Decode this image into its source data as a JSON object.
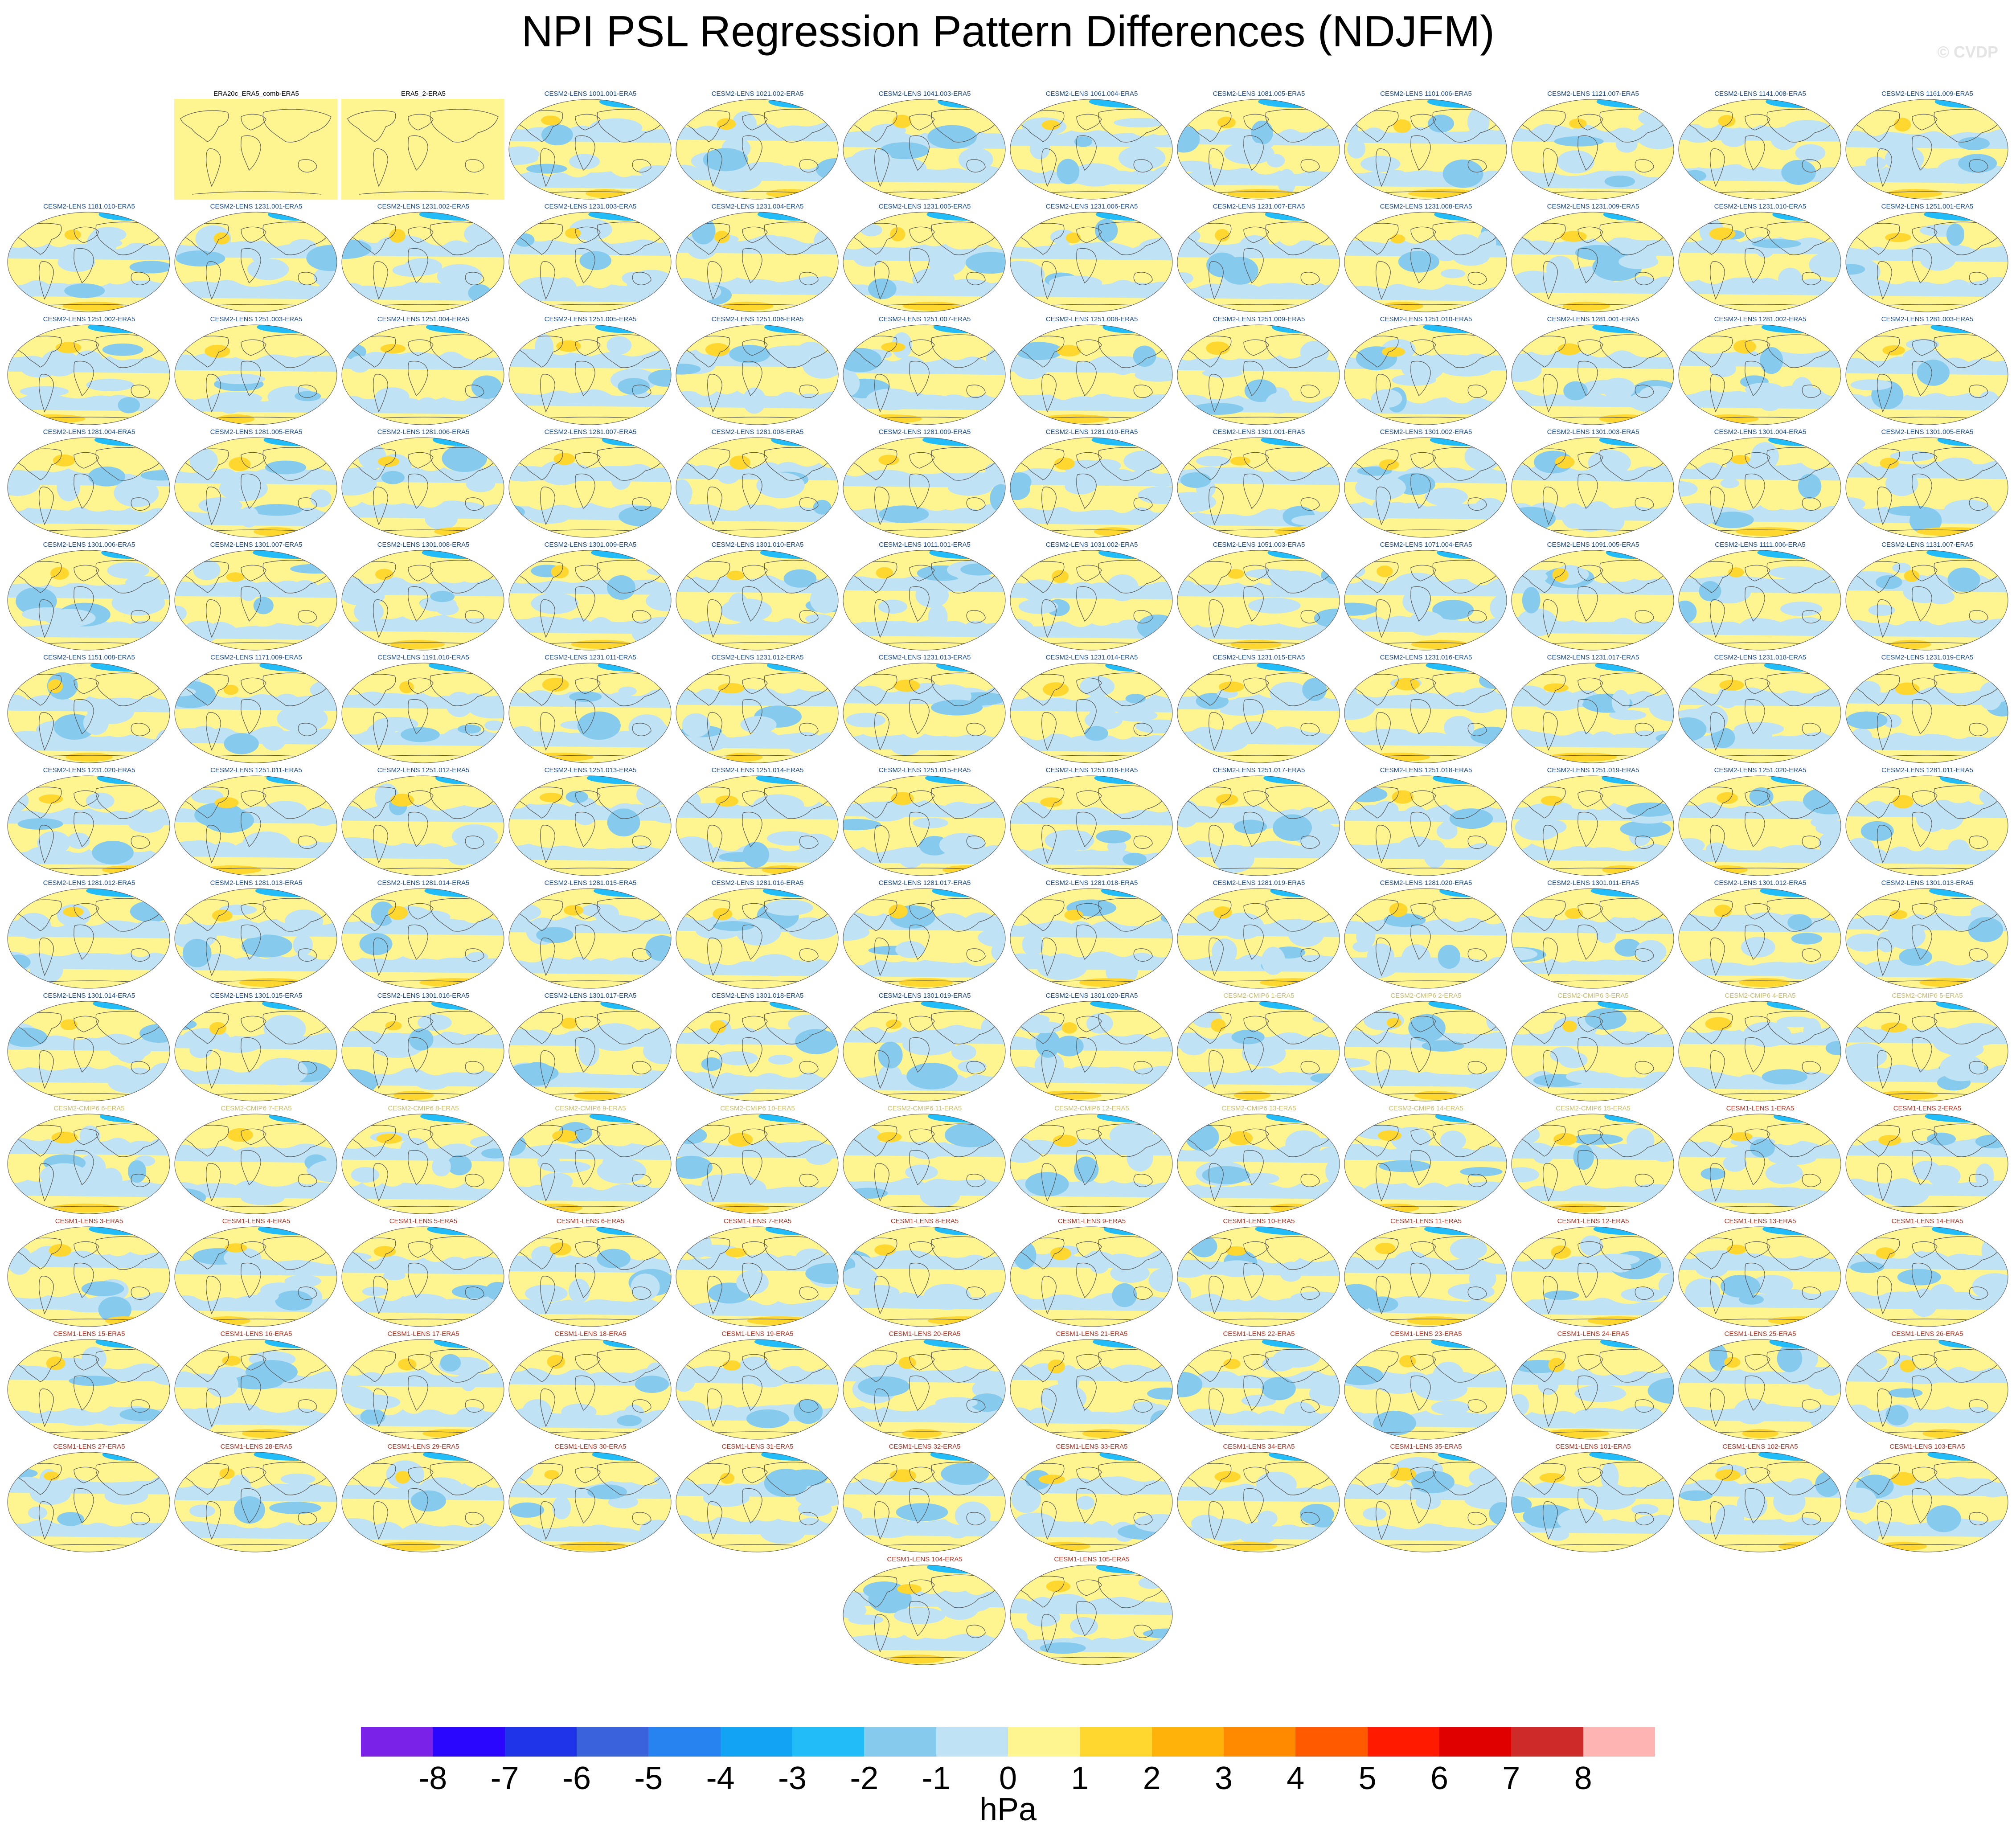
{
  "title": "NPI PSL Regression Pattern Differences (NDJFM)",
  "watermark": "© CVDP",
  "colorbar": {
    "units": "hPa",
    "labels": [
      "-8",
      "-7",
      "-6",
      "-5",
      "-4",
      "-3",
      "-2",
      "-1",
      "0",
      "1",
      "2",
      "3",
      "4",
      "5",
      "6",
      "7",
      "8"
    ],
    "colors": [
      "#7b22e8",
      "#2a06ff",
      "#1f34e8",
      "#3a62dc",
      "#2683f0",
      "#12a3f5",
      "#22bcf8",
      "#86cbee",
      "#bfe3f4",
      "#fff590",
      "#ffd72e",
      "#ffb20a",
      "#ff8a00",
      "#ff5a00",
      "#ff1a00",
      "#e10000",
      "#cf2a2a",
      "#ffb4b4"
    ]
  },
  "colors": {
    "obs_title": "#000000",
    "lens2_title": "#1a4a8a",
    "cmip6_title": "#c8bc6a",
    "lens1_title": "#b03020",
    "land_outline": "#555555"
  },
  "map_style": "robinson-like global projection, negative values blue, positive values yellow/orange",
  "panels": [
    {
      "label": "ERA20c_ERA5_comb-ERA5",
      "group": "obs",
      "style": "flat"
    },
    {
      "label": "ERA5_2-ERA5",
      "group": "obs",
      "style": "flat"
    },
    {
      "label": "CESM2-LENS 1001.001-ERA5",
      "group": "lens2"
    },
    {
      "label": "CESM2-LENS 1021.002-ERA5",
      "group": "lens2"
    },
    {
      "label": "CESM2-LENS 1041.003-ERA5",
      "group": "lens2"
    },
    {
      "label": "CESM2-LENS 1061.004-ERA5",
      "group": "lens2"
    },
    {
      "label": "CESM2-LENS 1081.005-ERA5",
      "group": "lens2"
    },
    {
      "label": "CESM2-LENS 1101.006-ERA5",
      "group": "lens2"
    },
    {
      "label": "CESM2-LENS 1121.007-ERA5",
      "group": "lens2"
    },
    {
      "label": "CESM2-LENS 1141.008-ERA5",
      "group": "lens2"
    },
    {
      "label": "CESM2-LENS 1161.009-ERA5",
      "group": "lens2"
    },
    {
      "label": "CESM2-LENS 1181.010-ERA5",
      "group": "lens2"
    },
    {
      "label": "CESM2-LENS 1231.001-ERA5",
      "group": "lens2"
    },
    {
      "label": "CESM2-LENS 1231.002-ERA5",
      "group": "lens2"
    },
    {
      "label": "CESM2-LENS 1231.003-ERA5",
      "group": "lens2"
    },
    {
      "label": "CESM2-LENS 1231.004-ERA5",
      "group": "lens2"
    },
    {
      "label": "CESM2-LENS 1231.005-ERA5",
      "group": "lens2"
    },
    {
      "label": "CESM2-LENS 1231.006-ERA5",
      "group": "lens2"
    },
    {
      "label": "CESM2-LENS 1231.007-ERA5",
      "group": "lens2"
    },
    {
      "label": "CESM2-LENS 1231.008-ERA5",
      "group": "lens2"
    },
    {
      "label": "CESM2-LENS 1231.009-ERA5",
      "group": "lens2"
    },
    {
      "label": "CESM2-LENS 1231.010-ERA5",
      "group": "lens2"
    },
    {
      "label": "CESM2-LENS 1251.001-ERA5",
      "group": "lens2"
    },
    {
      "label": "CESM2-LENS 1251.002-ERA5",
      "group": "lens2"
    },
    {
      "label": "CESM2-LENS 1251.003-ERA5",
      "group": "lens2"
    },
    {
      "label": "CESM2-LENS 1251.004-ERA5",
      "group": "lens2"
    },
    {
      "label": "CESM2-LENS 1251.005-ERA5",
      "group": "lens2"
    },
    {
      "label": "CESM2-LENS 1251.006-ERA5",
      "group": "lens2"
    },
    {
      "label": "CESM2-LENS 1251.007-ERA5",
      "group": "lens2"
    },
    {
      "label": "CESM2-LENS 1251.008-ERA5",
      "group": "lens2"
    },
    {
      "label": "CESM2-LENS 1251.009-ERA5",
      "group": "lens2"
    },
    {
      "label": "CESM2-LENS 1251.010-ERA5",
      "group": "lens2"
    },
    {
      "label": "CESM2-LENS 1281.001-ERA5",
      "group": "lens2"
    },
    {
      "label": "CESM2-LENS 1281.002-ERA5",
      "group": "lens2"
    },
    {
      "label": "CESM2-LENS 1281.003-ERA5",
      "group": "lens2"
    },
    {
      "label": "CESM2-LENS 1281.004-ERA5",
      "group": "lens2"
    },
    {
      "label": "CESM2-LENS 1281.005-ERA5",
      "group": "lens2"
    },
    {
      "label": "CESM2-LENS 1281.006-ERA5",
      "group": "lens2"
    },
    {
      "label": "CESM2-LENS 1281.007-ERA5",
      "group": "lens2"
    },
    {
      "label": "CESM2-LENS 1281.008-ERA5",
      "group": "lens2"
    },
    {
      "label": "CESM2-LENS 1281.009-ERA5",
      "group": "lens2"
    },
    {
      "label": "CESM2-LENS 1281.010-ERA5",
      "group": "lens2"
    },
    {
      "label": "CESM2-LENS 1301.001-ERA5",
      "group": "lens2"
    },
    {
      "label": "CESM2-LENS 1301.002-ERA5",
      "group": "lens2"
    },
    {
      "label": "CESM2-LENS 1301.003-ERA5",
      "group": "lens2"
    },
    {
      "label": "CESM2-LENS 1301.004-ERA5",
      "group": "lens2"
    },
    {
      "label": "CESM2-LENS 1301.005-ERA5",
      "group": "lens2"
    },
    {
      "label": "CESM2-LENS 1301.006-ERA5",
      "group": "lens2"
    },
    {
      "label": "CESM2-LENS 1301.007-ERA5",
      "group": "lens2"
    },
    {
      "label": "CESM2-LENS 1301.008-ERA5",
      "group": "lens2"
    },
    {
      "label": "CESM2-LENS 1301.009-ERA5",
      "group": "lens2"
    },
    {
      "label": "CESM2-LENS 1301.010-ERA5",
      "group": "lens2"
    },
    {
      "label": "CESM2-LENS 1011.001-ERA5",
      "group": "lens2"
    },
    {
      "label": "CESM2-LENS 1031.002-ERA5",
      "group": "lens2"
    },
    {
      "label": "CESM2-LENS 1051.003-ERA5",
      "group": "lens2"
    },
    {
      "label": "CESM2-LENS 1071.004-ERA5",
      "group": "lens2"
    },
    {
      "label": "CESM2-LENS 1091.005-ERA5",
      "group": "lens2"
    },
    {
      "label": "CESM2-LENS 1111.006-ERA5",
      "group": "lens2"
    },
    {
      "label": "CESM2-LENS 1131.007-ERA5",
      "group": "lens2"
    },
    {
      "label": "CESM2-LENS 1151.008-ERA5",
      "group": "lens2"
    },
    {
      "label": "CESM2-LENS 1171.009-ERA5",
      "group": "lens2"
    },
    {
      "label": "CESM2-LENS 1191.010-ERA5",
      "group": "lens2"
    },
    {
      "label": "CESM2-LENS 1231.011-ERA5",
      "group": "lens2"
    },
    {
      "label": "CESM2-LENS 1231.012-ERA5",
      "group": "lens2"
    },
    {
      "label": "CESM2-LENS 1231.013-ERA5",
      "group": "lens2"
    },
    {
      "label": "CESM2-LENS 1231.014-ERA5",
      "group": "lens2"
    },
    {
      "label": "CESM2-LENS 1231.015-ERA5",
      "group": "lens2"
    },
    {
      "label": "CESM2-LENS 1231.016-ERA5",
      "group": "lens2"
    },
    {
      "label": "CESM2-LENS 1231.017-ERA5",
      "group": "lens2"
    },
    {
      "label": "CESM2-LENS 1231.018-ERA5",
      "group": "lens2"
    },
    {
      "label": "CESM2-LENS 1231.019-ERA5",
      "group": "lens2"
    },
    {
      "label": "CESM2-LENS 1231.020-ERA5",
      "group": "lens2"
    },
    {
      "label": "CESM2-LENS 1251.011-ERA5",
      "group": "lens2"
    },
    {
      "label": "CESM2-LENS 1251.012-ERA5",
      "group": "lens2"
    },
    {
      "label": "CESM2-LENS 1251.013-ERA5",
      "group": "lens2"
    },
    {
      "label": "CESM2-LENS 1251.014-ERA5",
      "group": "lens2"
    },
    {
      "label": "CESM2-LENS 1251.015-ERA5",
      "group": "lens2"
    },
    {
      "label": "CESM2-LENS 1251.016-ERA5",
      "group": "lens2"
    },
    {
      "label": "CESM2-LENS 1251.017-ERA5",
      "group": "lens2"
    },
    {
      "label": "CESM2-LENS 1251.018-ERA5",
      "group": "lens2"
    },
    {
      "label": "CESM2-LENS 1251.019-ERA5",
      "group": "lens2"
    },
    {
      "label": "CESM2-LENS 1251.020-ERA5",
      "group": "lens2"
    },
    {
      "label": "CESM2-LENS 1281.011-ERA5",
      "group": "lens2"
    },
    {
      "label": "CESM2-LENS 1281.012-ERA5",
      "group": "lens2"
    },
    {
      "label": "CESM2-LENS 1281.013-ERA5",
      "group": "lens2"
    },
    {
      "label": "CESM2-LENS 1281.014-ERA5",
      "group": "lens2"
    },
    {
      "label": "CESM2-LENS 1281.015-ERA5",
      "group": "lens2"
    },
    {
      "label": "CESM2-LENS 1281.016-ERA5",
      "group": "lens2"
    },
    {
      "label": "CESM2-LENS 1281.017-ERA5",
      "group": "lens2"
    },
    {
      "label": "CESM2-LENS 1281.018-ERA5",
      "group": "lens2"
    },
    {
      "label": "CESM2-LENS 1281.019-ERA5",
      "group": "lens2"
    },
    {
      "label": "CESM2-LENS 1281.020-ERA5",
      "group": "lens2"
    },
    {
      "label": "CESM2-LENS 1301.011-ERA5",
      "group": "lens2"
    },
    {
      "label": "CESM2-LENS 1301.012-ERA5",
      "group": "lens2"
    },
    {
      "label": "CESM2-LENS 1301.013-ERA5",
      "group": "lens2"
    },
    {
      "label": "CESM2-LENS 1301.014-ERA5",
      "group": "lens2"
    },
    {
      "label": "CESM2-LENS 1301.015-ERA5",
      "group": "lens2"
    },
    {
      "label": "CESM2-LENS 1301.016-ERA5",
      "group": "lens2"
    },
    {
      "label": "CESM2-LENS 1301.017-ERA5",
      "group": "lens2"
    },
    {
      "label": "CESM2-LENS 1301.018-ERA5",
      "group": "lens2"
    },
    {
      "label": "CESM2-LENS 1301.019-ERA5",
      "group": "lens2"
    },
    {
      "label": "CESM2-LENS 1301.020-ERA5",
      "group": "lens2"
    },
    {
      "label": "CESM2-CMIP6 1-ERA5",
      "group": "cmip6"
    },
    {
      "label": "CESM2-CMIP6 2-ERA5",
      "group": "cmip6"
    },
    {
      "label": "CESM2-CMIP6 3-ERA5",
      "group": "cmip6"
    },
    {
      "label": "CESM2-CMIP6 4-ERA5",
      "group": "cmip6"
    },
    {
      "label": "CESM2-CMIP6 5-ERA5",
      "group": "cmip6"
    },
    {
      "label": "CESM2-CMIP6 6-ERA5",
      "group": "cmip6"
    },
    {
      "label": "CESM2-CMIP6 7-ERA5",
      "group": "cmip6"
    },
    {
      "label": "CESM2-CMIP6 8-ERA5",
      "group": "cmip6"
    },
    {
      "label": "CESM2-CMIP6 9-ERA5",
      "group": "cmip6"
    },
    {
      "label": "CESM2-CMIP6 10-ERA5",
      "group": "cmip6"
    },
    {
      "label": "CESM2-CMIP6 11-ERA5",
      "group": "cmip6"
    },
    {
      "label": "CESM2-CMIP6 12-ERA5",
      "group": "cmip6"
    },
    {
      "label": "CESM2-CMIP6 13-ERA5",
      "group": "cmip6"
    },
    {
      "label": "CESM2-CMIP6 14-ERA5",
      "group": "cmip6"
    },
    {
      "label": "CESM2-CMIP6 15-ERA5",
      "group": "cmip6"
    },
    {
      "label": "CESM1-LENS 1-ERA5",
      "group": "lens1"
    },
    {
      "label": "CESM1-LENS 2-ERA5",
      "group": "lens1"
    },
    {
      "label": "CESM1-LENS 3-ERA5",
      "group": "lens1"
    },
    {
      "label": "CESM1-LENS 4-ERA5",
      "group": "lens1"
    },
    {
      "label": "CESM1-LENS 5-ERA5",
      "group": "lens1"
    },
    {
      "label": "CESM1-LENS 6-ERA5",
      "group": "lens1"
    },
    {
      "label": "CESM1-LENS 7-ERA5",
      "group": "lens1"
    },
    {
      "label": "CESM1-LENS 8-ERA5",
      "group": "lens1"
    },
    {
      "label": "CESM1-LENS 9-ERA5",
      "group": "lens1"
    },
    {
      "label": "CESM1-LENS 10-ERA5",
      "group": "lens1"
    },
    {
      "label": "CESM1-LENS 11-ERA5",
      "group": "lens1"
    },
    {
      "label": "CESM1-LENS 12-ERA5",
      "group": "lens1"
    },
    {
      "label": "CESM1-LENS 13-ERA5",
      "group": "lens1"
    },
    {
      "label": "CESM1-LENS 14-ERA5",
      "group": "lens1"
    },
    {
      "label": "CESM1-LENS 15-ERA5",
      "group": "lens1"
    },
    {
      "label": "CESM1-LENS 16-ERA5",
      "group": "lens1"
    },
    {
      "label": "CESM1-LENS 17-ERA5",
      "group": "lens1"
    },
    {
      "label": "CESM1-LENS 18-ERA5",
      "group": "lens1"
    },
    {
      "label": "CESM1-LENS 19-ERA5",
      "group": "lens1"
    },
    {
      "label": "CESM1-LENS 20-ERA5",
      "group": "lens1"
    },
    {
      "label": "CESM1-LENS 21-ERA5",
      "group": "lens1"
    },
    {
      "label": "CESM1-LENS 22-ERA5",
      "group": "lens1"
    },
    {
      "label": "CESM1-LENS 23-ERA5",
      "group": "lens1"
    },
    {
      "label": "CESM1-LENS 24-ERA5",
      "group": "lens1"
    },
    {
      "label": "CESM1-LENS 25-ERA5",
      "group": "lens1"
    },
    {
      "label": "CESM1-LENS 26-ERA5",
      "group": "lens1"
    },
    {
      "label": "CESM1-LENS 27-ERA5",
      "group": "lens1"
    },
    {
      "label": "CESM1-LENS 28-ERA5",
      "group": "lens1"
    },
    {
      "label": "CESM1-LENS 29-ERA5",
      "group": "lens1"
    },
    {
      "label": "CESM1-LENS 30-ERA5",
      "group": "lens1"
    },
    {
      "label": "CESM1-LENS 31-ERA5",
      "group": "lens1"
    },
    {
      "label": "CESM1-LENS 32-ERA5",
      "group": "lens1"
    },
    {
      "label": "CESM1-LENS 33-ERA5",
      "group": "lens1"
    },
    {
      "label": "CESM1-LENS 34-ERA5",
      "group": "lens1"
    },
    {
      "label": "CESM1-LENS 35-ERA5",
      "group": "lens1"
    },
    {
      "label": "CESM1-LENS 101-ERA5",
      "group": "lens1"
    },
    {
      "label": "CESM1-LENS 102-ERA5",
      "group": "lens1"
    },
    {
      "label": "CESM1-LENS 103-ERA5",
      "group": "lens1"
    },
    {
      "label": "CESM1-LENS 104-ERA5",
      "group": "lens1"
    },
    {
      "label": "CESM1-LENS 105-ERA5",
      "group": "lens1"
    }
  ]
}
